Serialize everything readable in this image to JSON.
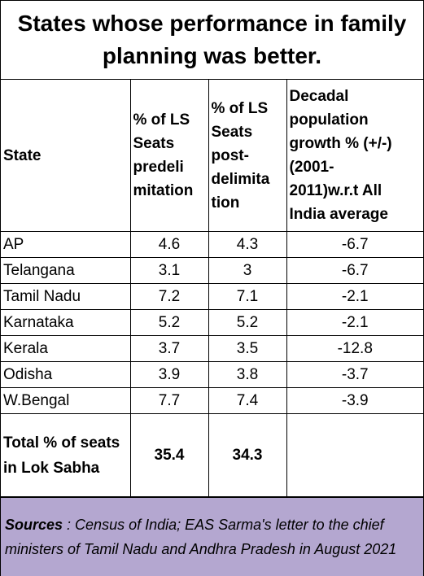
{
  "title": "States whose performance in family planning was better.",
  "table": {
    "headers": {
      "state": "State",
      "pre": "% of LS Seats predelimitation",
      "post": "% of LS Seats post-delimitation",
      "growth": "Decadal population growth % (+/-) (2001-2011)w.r.t All India average"
    },
    "header_display": {
      "pre": [
        "% of LS",
        "Seats",
        "predeli",
        "mitation"
      ],
      "post": [
        "% of LS",
        "Seats",
        "post-",
        "delimita",
        "tion"
      ],
      "growth": [
        "Decadal",
        "population",
        "growth % (+/-)",
        "(2001-",
        "2011)w.r.t All",
        "India average"
      ]
    },
    "rows": [
      {
        "state": "AP",
        "pre": "4.6",
        "post": "4.3",
        "growth": "-6.7"
      },
      {
        "state": "Telangana",
        "pre": "3.1",
        "post": "3",
        "growth": "-6.7"
      },
      {
        "state": "Tamil Nadu",
        "pre": "7.2",
        "post": "7.1",
        "growth": "-2.1"
      },
      {
        "state": "Karnataka",
        "pre": "5.2",
        "post": "5.2",
        "growth": "-2.1"
      },
      {
        "state": "Kerala",
        "pre": "3.7",
        "post": "3.5",
        "growth": "-12.8"
      },
      {
        "state": "Odisha",
        "pre": "3.9",
        "post": "3.8",
        "growth": "-3.7"
      },
      {
        "state": "W.Bengal",
        "pre": "7.7",
        "post": "7.4",
        "growth": "-3.9"
      }
    ],
    "total": {
      "label": "Total % of seats in Lok Sabha",
      "pre": "35.4",
      "post": "34.3",
      "growth": ""
    }
  },
  "sources": {
    "label": "Sources",
    "text": " : Census of India; EAS Sarma's letter to the chief ministers of Tamil Nadu and Andhra Pradesh in August 2021"
  },
  "colors": {
    "sources_background": "#b4a7d0"
  }
}
